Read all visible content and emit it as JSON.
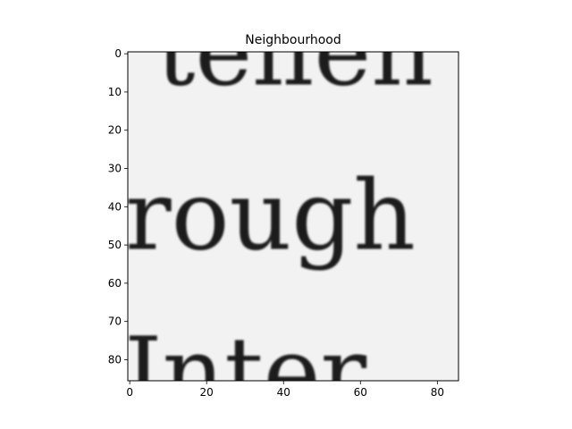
{
  "chart_data": {
    "type": "heatmap",
    "title": "Neighbourhood",
    "colormap": "gray",
    "background": "#f2f2f2",
    "xlim": [
      -0.5,
      85.5
    ],
    "ylim": [
      85.5,
      -0.5
    ],
    "xticks": [
      0,
      20,
      40,
      60,
      80
    ],
    "yticks": [
      0,
      10,
      20,
      30,
      40,
      50,
      60,
      70,
      80
    ],
    "xtick_labels": [
      "0",
      "20",
      "40",
      "60",
      "80"
    ],
    "ytick_labels": [
      "0",
      "10",
      "20",
      "30",
      "40",
      "50",
      "60",
      "70",
      "80"
    ],
    "image_text_lines": [
      {
        "text": "teilen",
        "baseline_y": 8
      },
      {
        "text": "rough",
        "baseline_y": 51
      },
      {
        "text": "Inter.",
        "baseline_y": 92
      }
    ]
  }
}
